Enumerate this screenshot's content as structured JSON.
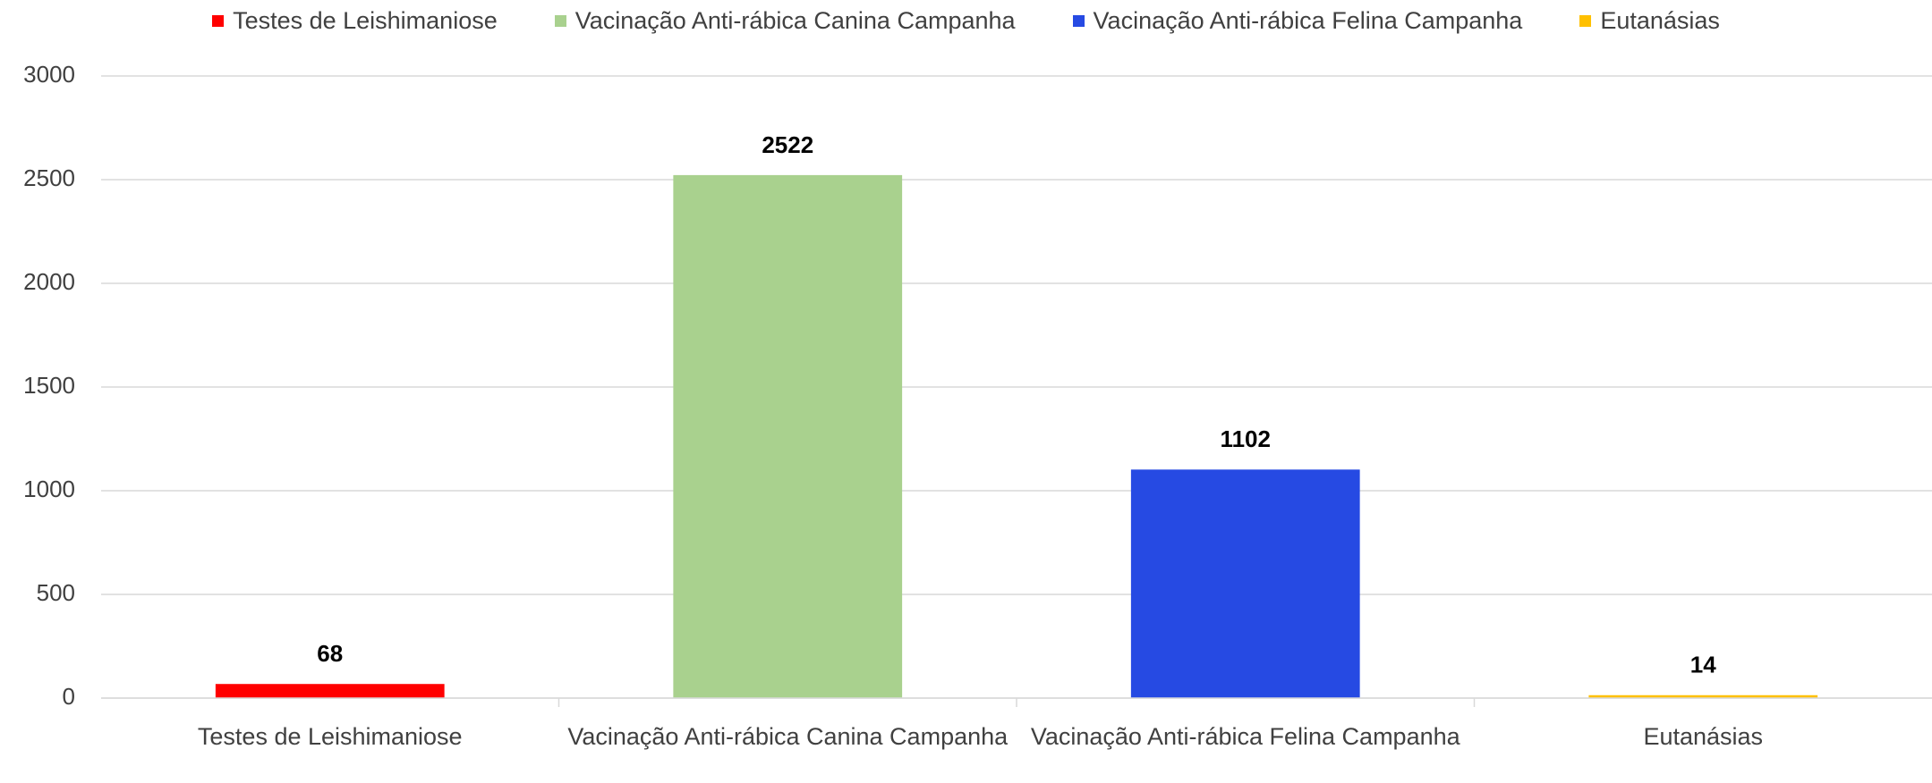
{
  "chart_data": {
    "type": "bar",
    "categories": [
      "Testes de Leishimaniose",
      "Vacinação Anti-rábica Canina Campanha",
      "Vacinação Anti-rábica Felina Campanha",
      "Eutanásias"
    ],
    "values": [
      68,
      2522,
      1102,
      14
    ],
    "colors": [
      "#ff0000",
      "#a9d18e",
      "#264ae3",
      "#ffc000"
    ],
    "ylim": [
      0,
      3000
    ],
    "yticks": [
      0,
      500,
      1000,
      1500,
      2000,
      2500,
      3000
    ],
    "grid": true,
    "legend": "top"
  }
}
